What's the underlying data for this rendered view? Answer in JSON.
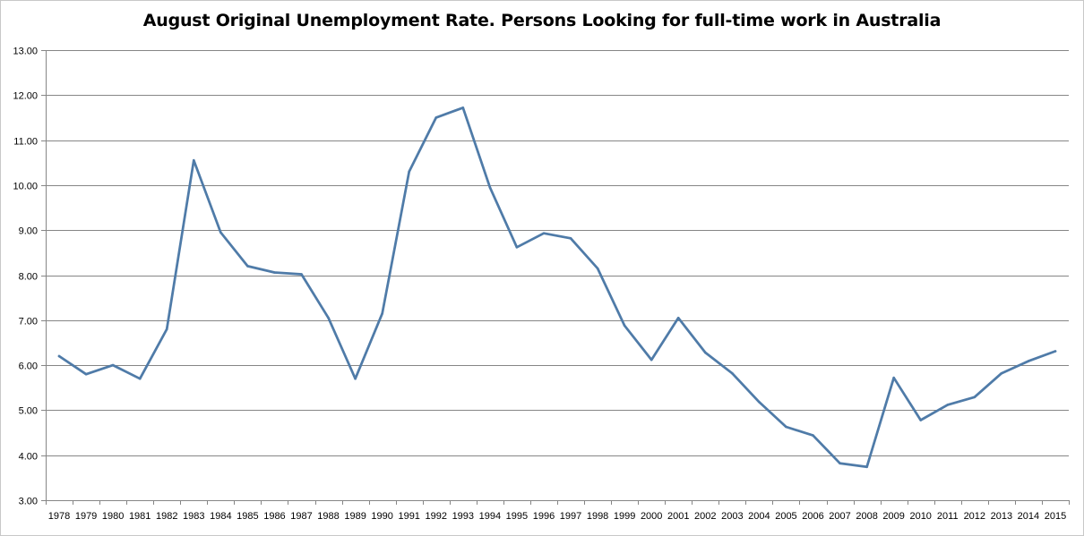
{
  "chart_data": {
    "type": "line",
    "title": "August Original Unemployment Rate. Persons Looking for full-time work in Australia",
    "xlabel": "",
    "ylabel": "",
    "ylim": [
      3.0,
      13.0
    ],
    "y_ticks": [
      "3.00",
      "4.00",
      "5.00",
      "6.00",
      "7.00",
      "8.00",
      "9.00",
      "10.00",
      "11.00",
      "12.00",
      "13.00"
    ],
    "y_tick_values": [
      3,
      4,
      5,
      6,
      7,
      8,
      9,
      10,
      11,
      12,
      13
    ],
    "grid": true,
    "legend": "none",
    "line_color": "#4f7ba8",
    "categories": [
      "1978",
      "1979",
      "1980",
      "1981",
      "1982",
      "1983",
      "1984",
      "1985",
      "1986",
      "1987",
      "1988",
      "1989",
      "1990",
      "1991",
      "1992",
      "1993",
      "1994",
      "1995",
      "1996",
      "1997",
      "1998",
      "1999",
      "2000",
      "2001",
      "2002",
      "2003",
      "2004",
      "2005",
      "2006",
      "2007",
      "2008",
      "2009",
      "2010",
      "2011",
      "2012",
      "2013",
      "2014",
      "2015"
    ],
    "series": [
      {
        "values": [
          6.2,
          5.8,
          6.0,
          5.7,
          6.8,
          10.55,
          8.95,
          8.2,
          8.06,
          8.02,
          7.05,
          5.7,
          7.15,
          10.3,
          11.5,
          11.72,
          9.95,
          8.62,
          8.93,
          8.82,
          8.15,
          6.88,
          6.12,
          7.05,
          6.28,
          5.82,
          5.18,
          4.63,
          4.44,
          3.82,
          3.74,
          5.72,
          4.78,
          5.12,
          5.29,
          5.82,
          6.09,
          6.31
        ]
      }
    ]
  }
}
